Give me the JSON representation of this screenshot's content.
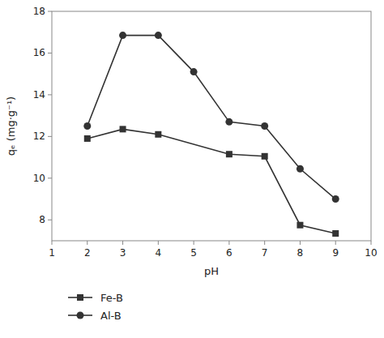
{
  "chart_data": {
    "type": "line",
    "x_label": "pH",
    "y_label": "qₑ (mg·g⁻¹)",
    "series": [
      {
        "name": "Fe-B",
        "color": "#333333",
        "marker": "square",
        "x": [
          2,
          3,
          4,
          6,
          7,
          8,
          9
        ],
        "values": [
          11.9,
          12.35,
          12.1,
          11.15,
          11.05,
          7.75,
          7.35
        ]
      },
      {
        "name": "Al-B",
        "color": "#333333",
        "marker": "circle",
        "x": [
          2,
          3,
          4,
          5,
          6,
          7,
          8,
          9
        ],
        "values": [
          12.5,
          16.85,
          16.85,
          15.1,
          12.7,
          12.5,
          10.45,
          9.0
        ]
      }
    ],
    "xlim": [
      1,
      10
    ],
    "ylim": [
      7,
      18
    ],
    "xticks": [
      1,
      2,
      3,
      4,
      5,
      6,
      7,
      8,
      9,
      10
    ],
    "yticks": [
      8,
      10,
      12,
      14,
      16,
      18
    ],
    "grid": false,
    "legend": "bottom"
  }
}
